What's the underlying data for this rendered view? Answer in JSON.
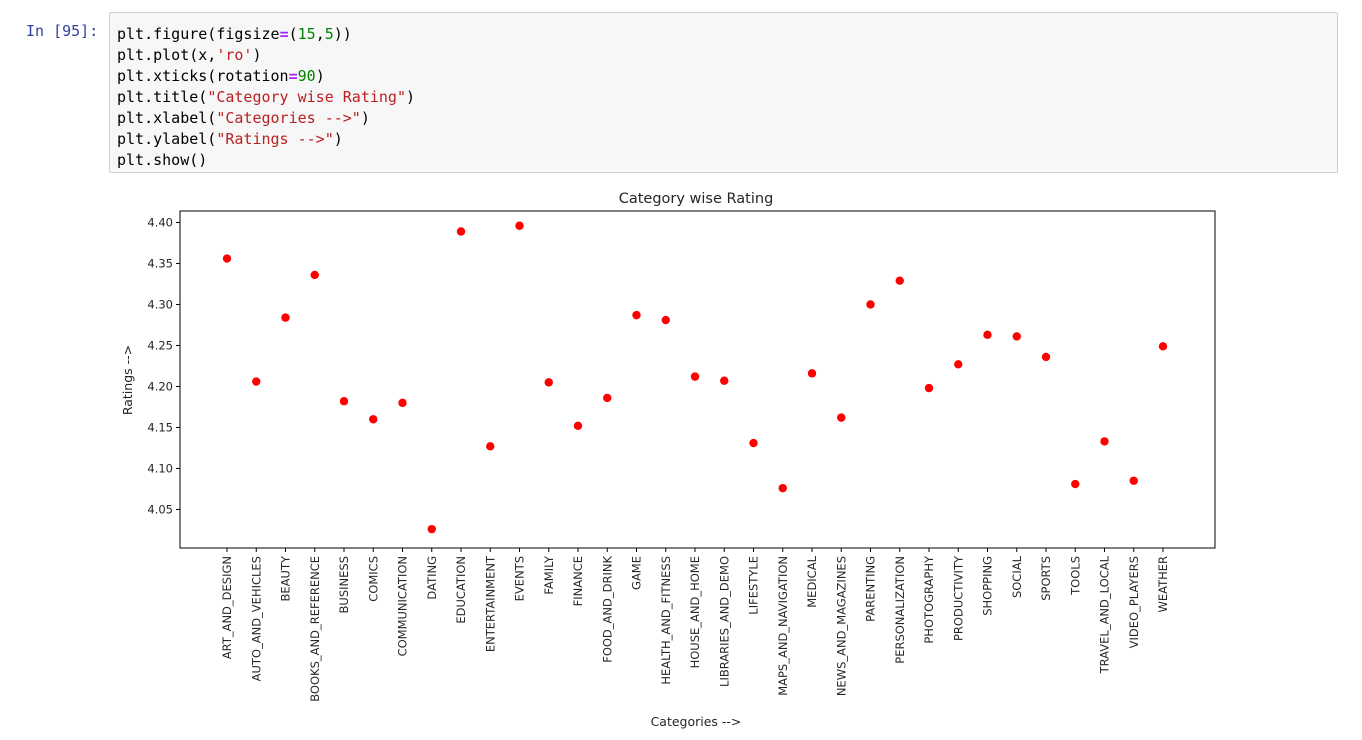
{
  "cell": {
    "prompt": "In [95]:",
    "code_lines": [
      [
        {
          "t": "plt.figure(figsize"
        },
        {
          "t": "=",
          "c": "op"
        },
        {
          "t": "("
        },
        {
          "t": "15",
          "c": "num"
        },
        {
          "t": ","
        },
        {
          "t": "5",
          "c": "num"
        },
        {
          "t": "))"
        }
      ],
      [
        {
          "t": "plt.plot(x,"
        },
        {
          "t": "'ro'",
          "c": "str"
        },
        {
          "t": ")"
        }
      ],
      [
        {
          "t": "plt.xticks(rotation"
        },
        {
          "t": "=",
          "c": "op"
        },
        {
          "t": "90",
          "c": "num"
        },
        {
          "t": ")"
        }
      ],
      [
        {
          "t": "plt.title("
        },
        {
          "t": "\"Category wise Rating\"",
          "c": "str"
        },
        {
          "t": ")"
        }
      ],
      [
        {
          "t": "plt.xlabel("
        },
        {
          "t": "\"Categories -->\"",
          "c": "str"
        },
        {
          "t": ")"
        }
      ],
      [
        {
          "t": "plt.ylabel("
        },
        {
          "t": "\"Ratings -->\"",
          "c": "str"
        },
        {
          "t": ")"
        }
      ],
      [
        {
          "t": "plt.show()"
        }
      ]
    ]
  },
  "colors": {
    "prompt": "#303f9f",
    "string": "#ba2121",
    "number": "#008000",
    "operator": "#aa22ff",
    "marker": "#ff0000"
  },
  "chart_data": {
    "type": "scatter",
    "title": "Category wise Rating",
    "xlabel": "Categories -->",
    "ylabel": "Ratings -->",
    "ylim": [
      4.003,
      4.414
    ],
    "yticks": [
      4.05,
      4.1,
      4.15,
      4.2,
      4.25,
      4.3,
      4.35,
      4.4
    ],
    "ytick_labels": [
      "4.05",
      "4.10",
      "4.15",
      "4.20",
      "4.25",
      "4.30",
      "4.35",
      "4.40"
    ],
    "xtick_rotation": 90,
    "marker": "ro",
    "grid": false,
    "categories": [
      "ART_AND_DESIGN",
      "AUTO_AND_VEHICLES",
      "BEAUTY",
      "BOOKS_AND_REFERENCE",
      "BUSINESS",
      "COMICS",
      "COMMUNICATION",
      "DATING",
      "EDUCATION",
      "ENTERTAINMENT",
      "EVENTS",
      "FAMILY",
      "FINANCE",
      "FOOD_AND_DRINK",
      "GAME",
      "HEALTH_AND_FITNESS",
      "HOUSE_AND_HOME",
      "LIBRARIES_AND_DEMO",
      "LIFESTYLE",
      "MAPS_AND_NAVIGATION",
      "MEDICAL",
      "NEWS_AND_MAGAZINES",
      "PARENTING",
      "PERSONALIZATION",
      "PHOTOGRAPHY",
      "PRODUCTIVITY",
      "SHOPPING",
      "SOCIAL",
      "SPORTS",
      "TOOLS",
      "TRAVEL_AND_LOCAL",
      "VIDEO_PLAYERS",
      "WEATHER"
    ],
    "values": [
      4.356,
      4.206,
      4.284,
      4.336,
      4.182,
      4.16,
      4.18,
      4.026,
      4.389,
      4.127,
      4.396,
      4.205,
      4.152,
      4.186,
      4.287,
      4.281,
      4.212,
      4.207,
      4.131,
      4.076,
      4.216,
      4.162,
      4.3,
      4.329,
      4.198,
      4.227,
      4.263,
      4.261,
      4.236,
      4.081,
      4.133,
      4.085,
      4.249
    ]
  }
}
